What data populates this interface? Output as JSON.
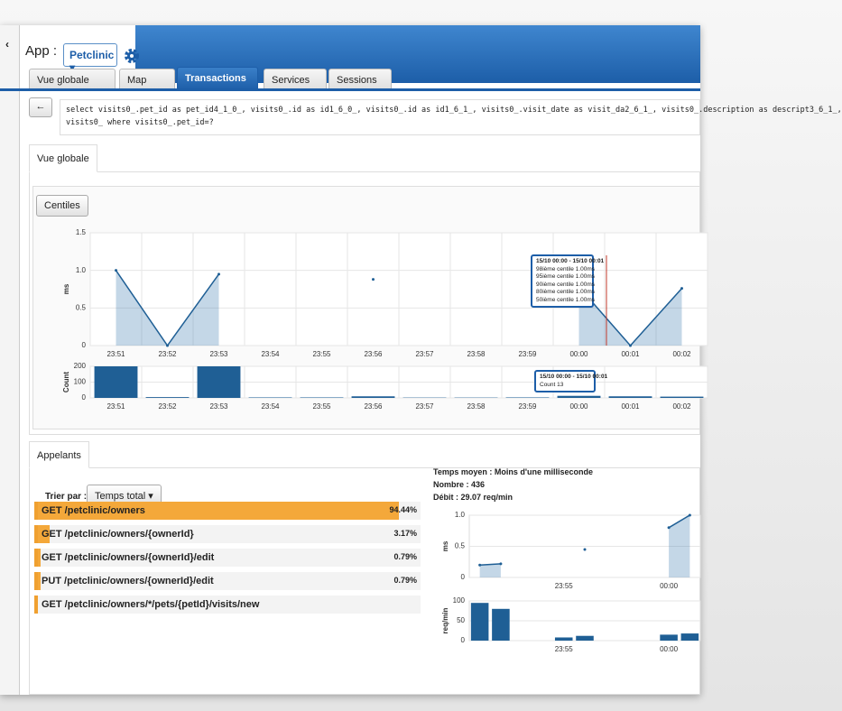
{
  "header": {
    "app_label": "App :",
    "app_select": "Petclinic"
  },
  "tabs": [
    "Vue globale",
    "Map",
    "Transactions",
    "Services",
    "Sessions"
  ],
  "active_tab": 2,
  "query": [
    "select visits0_.pet_id as pet_id4_1_0_, visits0_.id as id1_6_0_, visits0_.id as id1_6_1_, visits0_.visit_date as visit_da2_6_1_, visits0_.description as descript3_6_1_,",
    "visits0_ where visits0_.pet_id=?"
  ],
  "overview": {
    "tab": "Vue globale",
    "button": "Centiles",
    "percentiles": {
      "type": "area",
      "ylabel": "ms",
      "ylim": [
        0,
        1.5
      ],
      "yticks": [
        0,
        0.5,
        {
          "value": 1,
          "label": "1.0"
        },
        1.5
      ],
      "categories": [
        "23:51",
        "23:52",
        "23:53",
        "23:54",
        "23:55",
        "23:56",
        "23:57",
        "23:58",
        "23:59",
        "00:00",
        "00:01",
        "00:02"
      ],
      "values": [
        1,
        0,
        0.95,
        null,
        null,
        0.88,
        null,
        null,
        null,
        0.78,
        0,
        0.76
      ],
      "tooltip": [
        "15/10 00:00 - 15/10 00:01",
        "98ième centile 1.00ms",
        "95ième centile 1.00ms",
        "90ième centile 1.00ms",
        "80ième centile 1.00ms",
        "50ième centile 1.00ms"
      ]
    },
    "count": {
      "type": "bar",
      "ylabel": "Count",
      "ylim": [
        0,
        200
      ],
      "yticks": [
        0,
        100,
        200
      ],
      "categories": [
        "23:51",
        "23:52",
        "23:53",
        "23:54",
        "23:55",
        "23:56",
        "23:57",
        "23:58",
        "23:59",
        "00:00",
        "00:01",
        "00:02"
      ],
      "values": [
        200,
        5,
        200,
        3,
        3,
        10,
        2,
        2,
        3,
        13,
        10,
        8
      ],
      "tooltip": [
        "15/10 00:00 - 15/10 00:01",
        "Count 13"
      ]
    }
  },
  "callers": {
    "tab": "Appelants",
    "sort_label": "Trier par :",
    "sort_select": "Temps total",
    "rows": [
      {
        "label": "GET /petclinic/owners",
        "percent": {
          "value": 94.44,
          "label": "94.44%"
        }
      },
      {
        "label": "GET /petclinic/owners/{ownerId}",
        "percent": {
          "value": 3.17,
          "label": "3.17%"
        }
      },
      {
        "label": "GET /petclinic/owners/{ownerId}/edit",
        "percent": {
          "value": 0.79,
          "label": "0.79%"
        }
      },
      {
        "label": "PUT /petclinic/owners/{ownerId}/edit",
        "percent": {
          "value": 0.79,
          "label": "0.79%"
        }
      },
      {
        "label": "GET /petclinic/owners/*/pets/{petId}/visits/new"
      }
    ],
    "stats": [
      "Temps moyen : Moins d'une milliseconde",
      "Nombre : 436",
      "Débit : 29.07 req/min"
    ],
    "ms_chart": {
      "type": "area",
      "ylabel": "ms",
      "ylim": [
        0,
        1
      ],
      "yticks": [
        0,
        0.5,
        {
          "value": 1,
          "label": "1.0"
        }
      ],
      "categories": [
        null,
        null,
        null,
        null,
        "23:55",
        null,
        null,
        null,
        null,
        "00:00",
        null
      ],
      "values": [
        0.2,
        0.22,
        null,
        null,
        null,
        0.45,
        null,
        null,
        null,
        0.8,
        1
      ]
    },
    "rate_chart": {
      "type": "bar",
      "ylabel": "req/min",
      "ylim": [
        0,
        100
      ],
      "yticks": [
        0,
        50,
        100
      ],
      "categories": [
        null,
        null,
        null,
        null,
        "23:55",
        null,
        null,
        null,
        null,
        "00:00",
        null
      ],
      "values": [
        95,
        80,
        null,
        null,
        8,
        12,
        null,
        null,
        null,
        15,
        18
      ]
    }
  }
}
